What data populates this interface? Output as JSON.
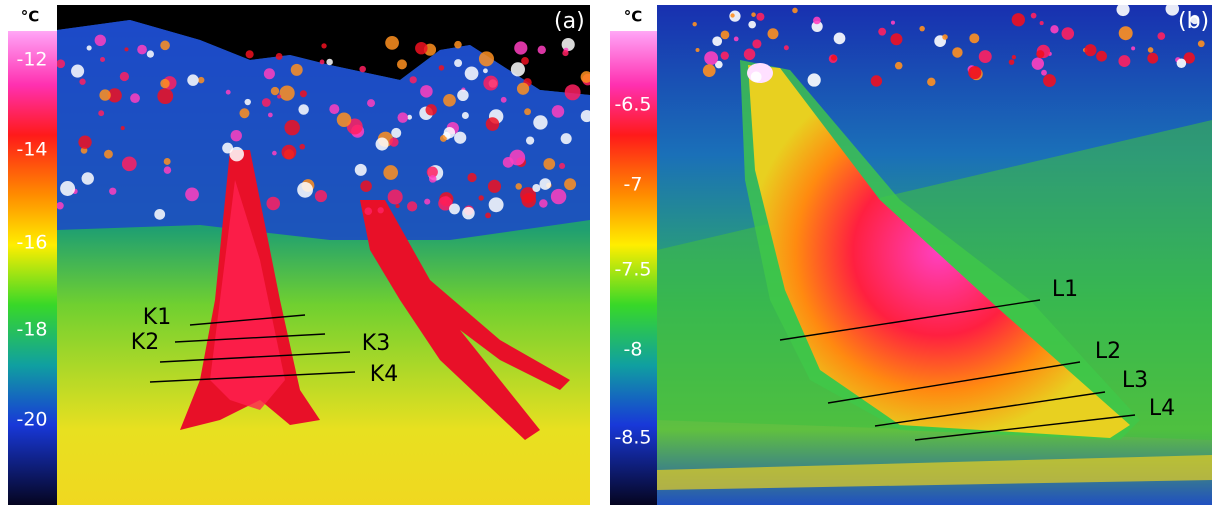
{
  "panels": [
    {
      "label": "(a)",
      "unit": "°C",
      "colorbar_ticks": [
        "-12",
        "-14",
        "-16",
        "-18",
        "-20"
      ],
      "lines": [
        "K1",
        "K2",
        "K3",
        "K4"
      ]
    },
    {
      "label": "(b)",
      "unit": "°C",
      "colorbar_ticks": [
        "-6.5",
        "-7",
        "-7.5",
        "-8",
        "-8.5"
      ],
      "lines": [
        "L1",
        "L2",
        "L3",
        "L4"
      ]
    }
  ]
}
